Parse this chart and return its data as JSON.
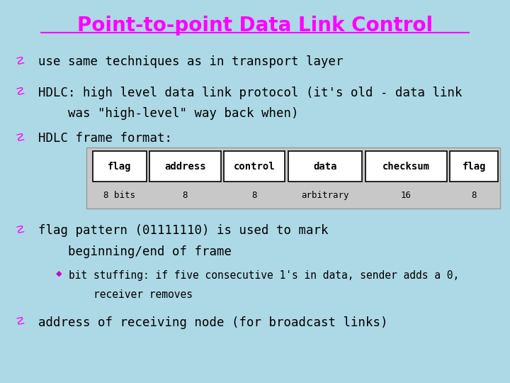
{
  "title": "Point-to-point Data Link Control",
  "title_color": "#FF00FF",
  "bg_color": "#ADD8E6",
  "body_text_color": "#000000",
  "bullet_color": "#FF00FF",
  "table_headers": [
    "flag",
    "address",
    "control",
    "data",
    "checksum",
    "flag"
  ],
  "table_values": [
    "8 bits",
    "8",
    "8",
    "arbitrary",
    "16",
    "8"
  ],
  "table_bg": "#C8C8C8",
  "table_cell_bg": "#FFFFFF",
  "sub_bullet_color": "#CC00CC",
  "bullet_item1": "use same techniques as in transport layer",
  "bullet_item2a": "HDLC: high level data link protocol (it's old - data link",
  "bullet_item2b": "    was \"high-level\" way back when)",
  "bullet_item3": "HDLC frame format:",
  "flag_item1": "flag pattern (01111110) is used to mark",
  "flag_item2": "    beginning/end of frame",
  "sub_bullet_item1": "bit stuffing: if five consecutive 1's in data, sender adds a 0,",
  "sub_bullet_item2": "    receiver removes",
  "address_item": "address of receiving node (for broadcast links)"
}
